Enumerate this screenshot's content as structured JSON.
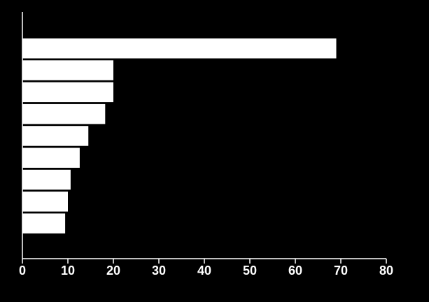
{
  "chart_data": {
    "type": "barh",
    "categories": [
      null,
      null,
      null,
      null,
      null,
      null,
      null,
      null,
      null
    ],
    "values": [
      69,
      20,
      20,
      18.2,
      14.5,
      12.6,
      10.6,
      10,
      9.4
    ],
    "color": "#ffffff",
    "xlim": [
      0,
      80
    ],
    "xticks": [
      0,
      10,
      20,
      30,
      40,
      50,
      60,
      70,
      80
    ],
    "grid": false
  }
}
